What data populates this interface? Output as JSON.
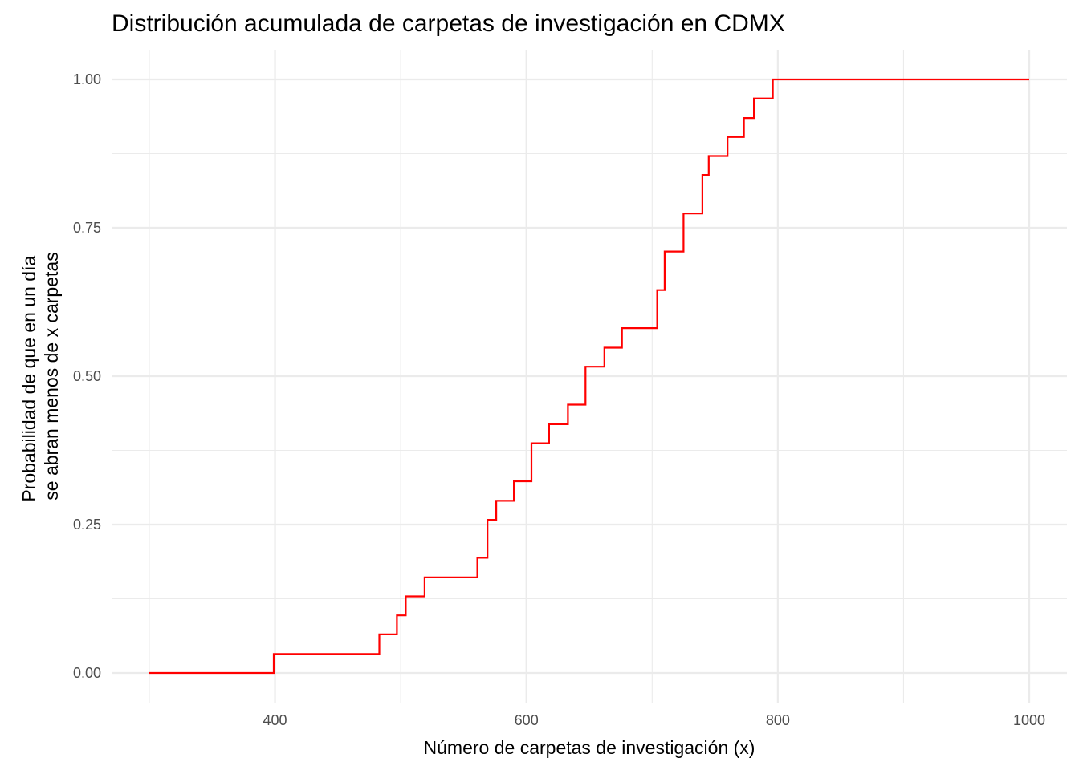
{
  "chart_data": {
    "type": "line",
    "step": true,
    "title": "Distribución acumulada de carpetas de investigación en CDMX",
    "xlabel": "Número de carpetas de investigación (x)",
    "ylabel_lines": [
      "Probabilidad de que en un día",
      "se abran menos de x carpetas"
    ],
    "xlim": [
      270,
      1030
    ],
    "ylim": [
      -0.05,
      1.05
    ],
    "x_ticks": [
      400,
      600,
      800,
      1000
    ],
    "x_tick_labels": [
      "400",
      "600",
      "800",
      "1000"
    ],
    "x_minor_ticks": [
      300,
      500,
      700,
      900
    ],
    "y_ticks": [
      0,
      0.25,
      0.5,
      0.75,
      1
    ],
    "y_tick_labels": [
      "0.00",
      "0.25",
      "0.50",
      "0.75",
      "1.00"
    ],
    "y_minor_ticks": [
      0.125,
      0.375,
      0.625,
      0.875
    ],
    "grid": true,
    "line_color": "#ff0000",
    "series": [
      {
        "x": [
          300,
          399,
          483,
          497,
          504,
          519,
          561,
          569,
          576,
          590,
          604,
          618,
          633,
          647,
          662,
          676,
          704,
          710,
          725,
          740,
          745,
          760,
          773,
          781,
          796,
          1000
        ],
        "y": [
          0,
          0.032,
          0.065,
          0.097,
          0.129,
          0.161,
          0.194,
          0.258,
          0.29,
          0.323,
          0.387,
          0.419,
          0.452,
          0.516,
          0.548,
          0.581,
          0.645,
          0.71,
          0.774,
          0.839,
          0.871,
          0.903,
          0.935,
          0.968,
          1.0,
          1.0
        ]
      }
    ]
  }
}
